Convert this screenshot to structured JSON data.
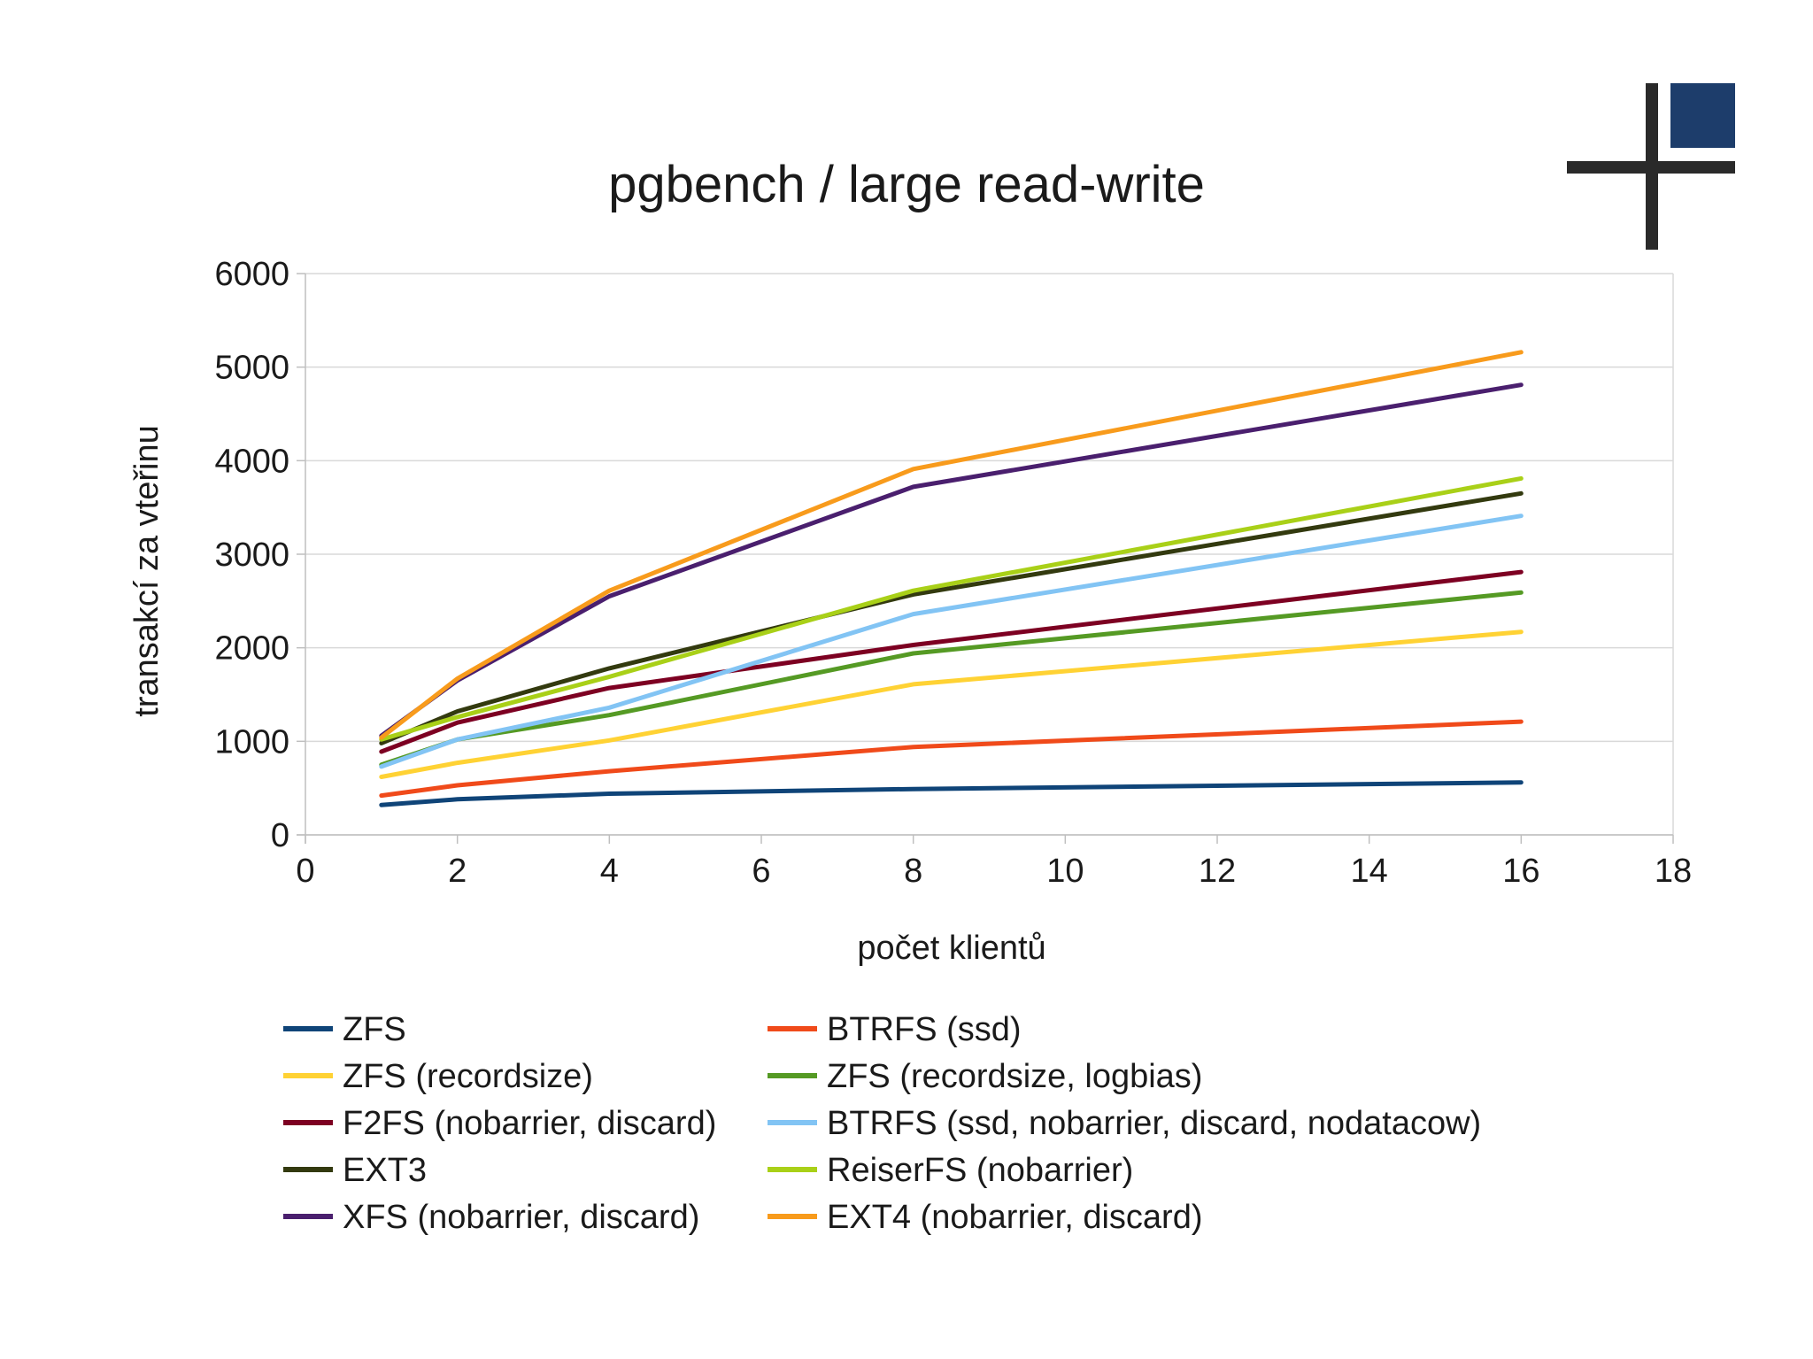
{
  "logo": {
    "name": "plus-square-logo-icon"
  },
  "chart_data": {
    "type": "line",
    "title": "pgbench / large read-write",
    "xlabel": "počet klientů",
    "ylabel": "transakcí za vteřinu",
    "xlim": [
      0,
      18
    ],
    "ylim": [
      0,
      6000
    ],
    "x_ticks": [
      0,
      2,
      4,
      6,
      8,
      10,
      12,
      14,
      16,
      18
    ],
    "y_ticks": [
      0,
      1000,
      2000,
      3000,
      4000,
      5000,
      6000
    ],
    "grid": true,
    "legend_position": "bottom",
    "x": [
      1,
      2,
      4,
      8,
      16
    ],
    "series": [
      {
        "name": "ZFS",
        "color": "#0f4478",
        "values": [
          320,
          380,
          440,
          490,
          560
        ]
      },
      {
        "name": "BTRFS (ssd)",
        "color": "#f04a1a",
        "values": [
          420,
          530,
          680,
          940,
          1210
        ]
      },
      {
        "name": "ZFS (recordsize)",
        "color": "#ffd234",
        "values": [
          620,
          770,
          1010,
          1610,
          2170
        ]
      },
      {
        "name": "ZFS (recordsize, logbias)",
        "color": "#559a24",
        "values": [
          750,
          1020,
          1280,
          1940,
          2590
        ]
      },
      {
        "name": "F2FS (nobarrier, discard)",
        "color": "#7d0022",
        "values": [
          890,
          1200,
          1570,
          2030,
          2810
        ]
      },
      {
        "name": "BTRFS (ssd, nobarrier, discard, nodatacow)",
        "color": "#82c4f4",
        "values": [
          730,
          1020,
          1360,
          2360,
          3410
        ]
      },
      {
        "name": "EXT3",
        "color": "#333a0f",
        "values": [
          980,
          1320,
          1780,
          2570,
          3650
        ]
      },
      {
        "name": "ReiserFS (nobarrier)",
        "color": "#a9d018",
        "values": [
          1020,
          1260,
          1690,
          2610,
          3810
        ]
      },
      {
        "name": "XFS (nobarrier, discard)",
        "color": "#4a1f6e",
        "values": [
          1060,
          1650,
          2550,
          3720,
          4810
        ]
      },
      {
        "name": "EXT4 (nobarrier, discard)",
        "color": "#f89b1c",
        "values": [
          1040,
          1670,
          2610,
          3910,
          5160
        ]
      }
    ]
  }
}
